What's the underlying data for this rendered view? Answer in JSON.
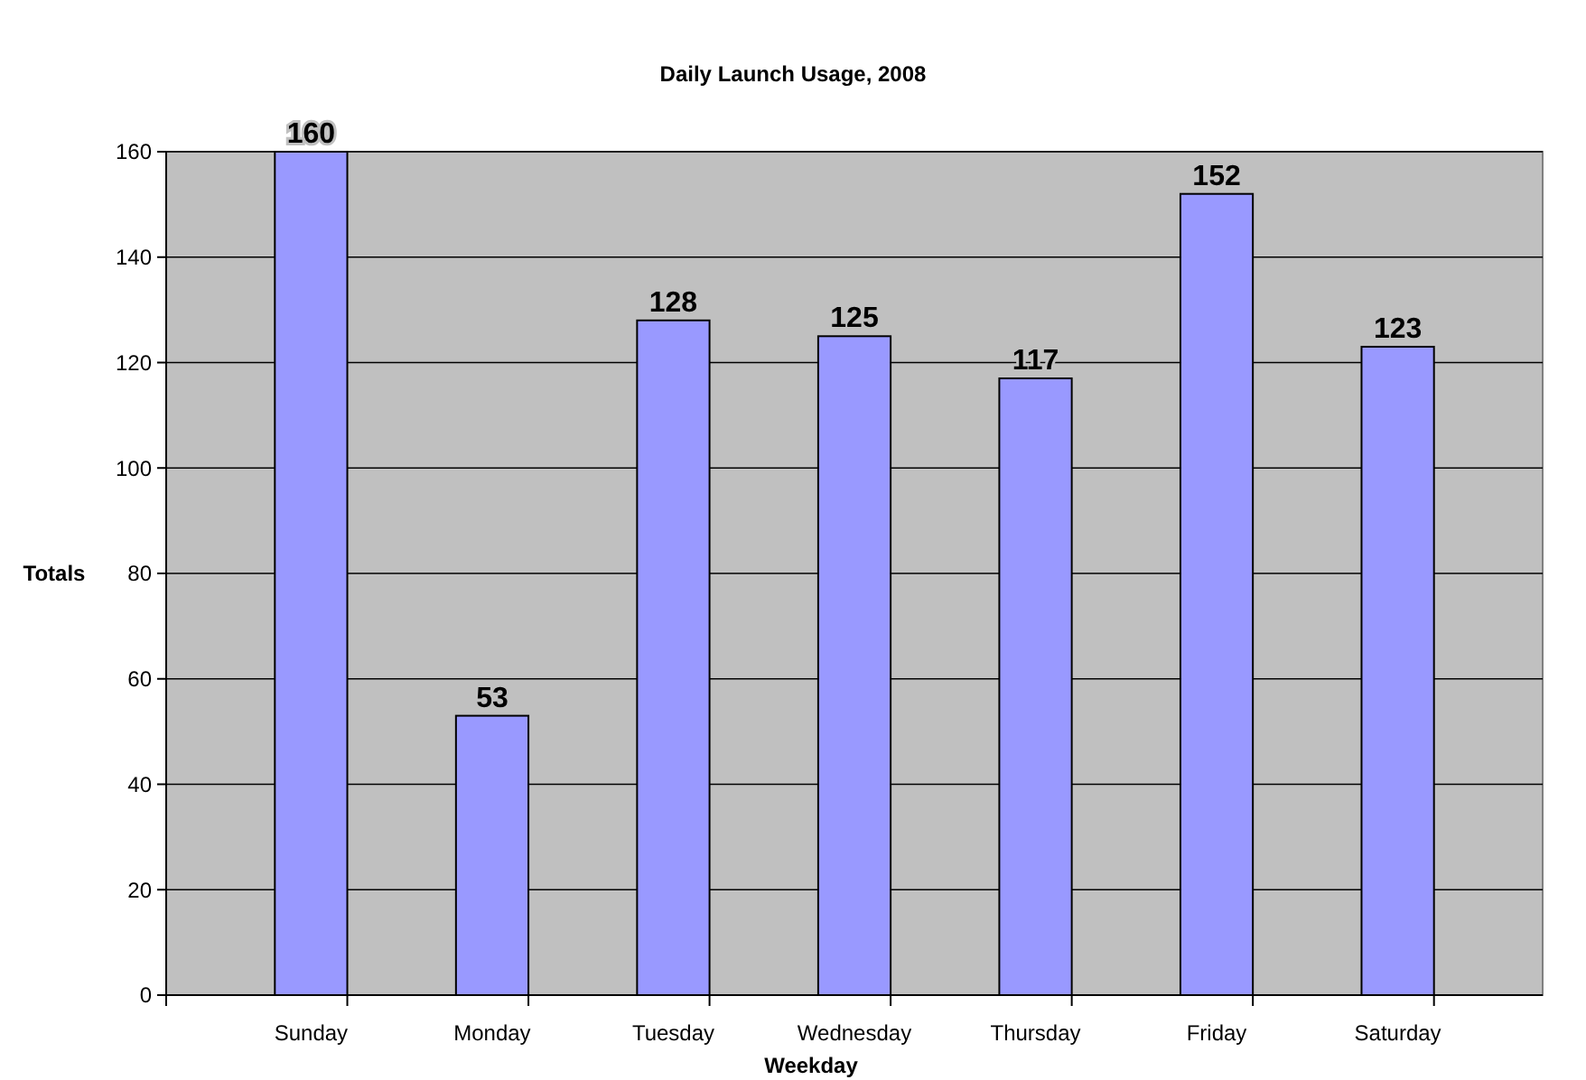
{
  "chart_data": {
    "type": "bar",
    "title": "Daily Launch Usage, 2008",
    "xlabel": "Weekday",
    "ylabel": "Totals",
    "categories": [
      "Sunday",
      "Monday",
      "Tuesday",
      "Wednesday",
      "Thursday",
      "Friday",
      "Saturday"
    ],
    "values": [
      160,
      53,
      128,
      125,
      117,
      152,
      123
    ],
    "color": "#9999ff",
    "ylim": [
      0,
      160
    ],
    "yticks": [
      0,
      20,
      40,
      60,
      80,
      100,
      120,
      140,
      160
    ],
    "grid": "y",
    "data_labels": true
  }
}
